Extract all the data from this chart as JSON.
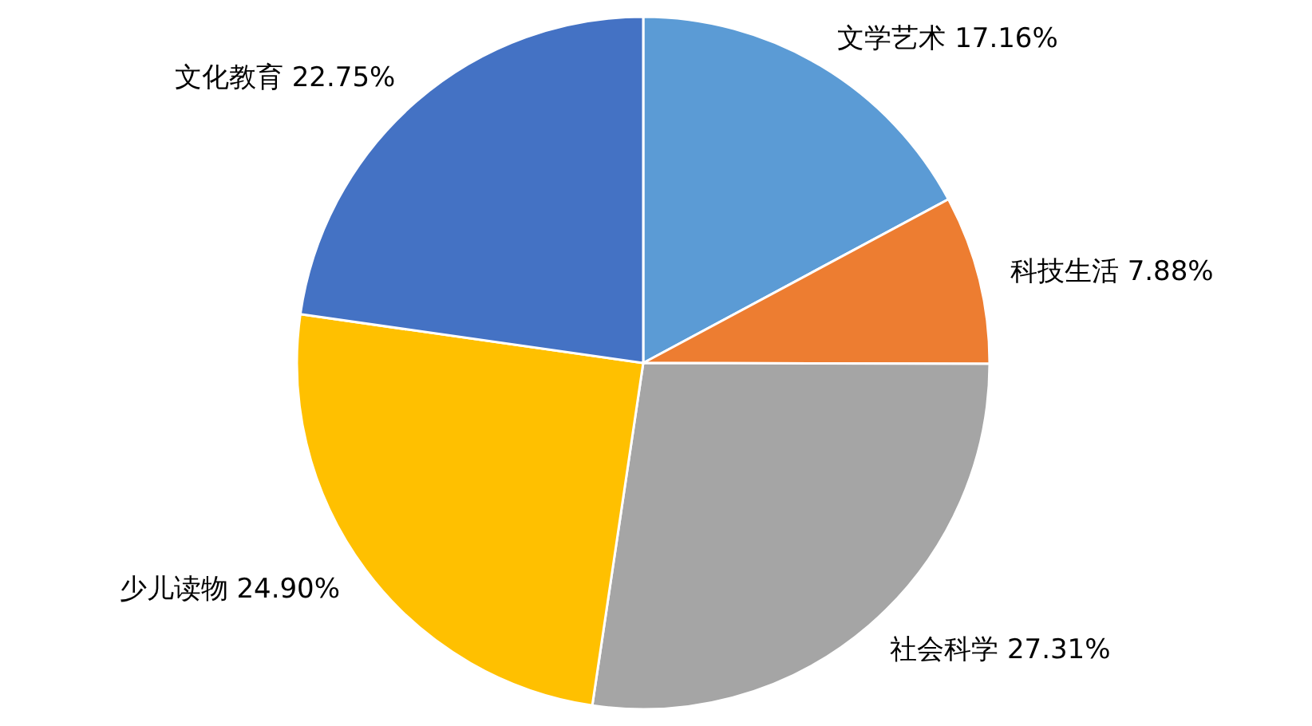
{
  "chart_data": {
    "type": "pie",
    "categories": [
      "文学艺术",
      "科技生活",
      "社会科学",
      "少儿读物",
      "文化教育"
    ],
    "values": [
      17.16,
      7.88,
      27.31,
      24.9,
      22.75
    ],
    "colors": [
      "#5b9bd5",
      "#ed7d31",
      "#a5a5a5",
      "#ffc000",
      "#4472c4"
    ],
    "value_labels": [
      "17.16%",
      "7.88%",
      "27.31%",
      "24.90%",
      "22.75%"
    ]
  }
}
